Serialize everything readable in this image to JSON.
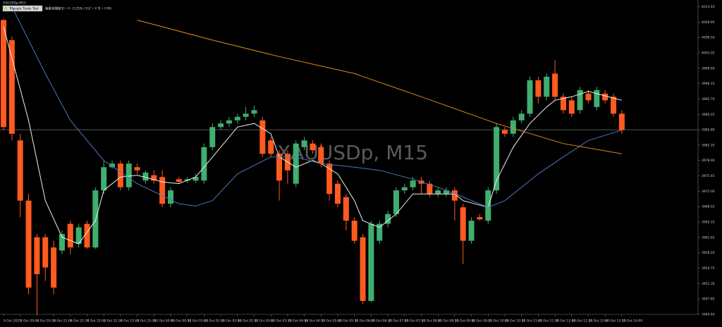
{
  "symbol_label": "XAUUSDp,M15",
  "tool_button": "Triangle Trade Tool",
  "status_text": "偏乗実閾値モード: 0.25% (スピードモード中)",
  "chart_data": {
    "type": "candlestick",
    "watermark": "XAUUSDp, M15",
    "up_color": "#3fae6f",
    "down_color": "#ff5a1f",
    "categories": [
      "9 Oct 2025",
      null,
      "9 Oct 20:00",
      null,
      "9 Oct 20:30",
      null,
      "9 Oct 21:00",
      null,
      "9 Oct 21:30",
      null,
      "9 Oct 22:00",
      null,
      "9 Oct 22:30",
      null,
      "9 Oct 23:00",
      null,
      "9 Oct 23:30",
      null,
      "10 Oct 00:00",
      null,
      "10 Oct 00:30",
      null,
      "10 Oct 01:00",
      null,
      "10 Oct 01:30",
      null,
      "10 Oct 02:00",
      null,
      "10 Oct 02:30",
      null,
      "10 Oct 03:00",
      null,
      "10 Oct 03:30",
      null,
      "10 Oct 04:00",
      null,
      "10 Oct 04:30",
      null,
      "10 Oct 05:00",
      null,
      "10 Oct 05:30",
      null,
      "10 Oct 06:00",
      null,
      "10 Oct 06:30",
      null,
      "10 Oct 07:00",
      null,
      "10 Oct 07:30",
      null,
      "10 Oct 08:00",
      null,
      "10 Oct 08:30",
      null,
      "10 Oct 09:00",
      null,
      "10 Oct 09:30",
      null,
      "10 Oct 10:00",
      null,
      "10 Oct 10:30",
      null,
      "10 Oct 11:00",
      null,
      "10 Oct 11:30",
      null,
      "10 Oct 12:00",
      null,
      "10 Oct 12:30",
      null,
      "10 Oct 13:00",
      null,
      "10 Oct 13:30",
      null,
      "10 Oct 14:00"
    ],
    "open": [
      4010.4,
      4005.9,
      3983.4,
      3969.9,
      3961.7,
      3961.7,
      3959.4,
      3958.7,
      3964.7,
      3960.2,
      3964.7,
      3959.4,
      3972.2,
      3977.4,
      3978.2,
      3972.9,
      3977.4,
      3974.4,
      3975.6,
      3975.2,
      3969.2,
      3974.7,
      3974.4,
      3974.4,
      3974.4,
      3981.9,
      3986.4,
      3987.2,
      3987.9,
      3988.7,
      3989.4,
      3987.9,
      3983.4,
      3980.4,
      3980.4,
      3973.7,
      3981.9,
      3982.7,
      3981.9,
      3978.2,
      3973.7,
      3970.7,
      3965.4,
      3961.7,
      3947.4,
      3960.9,
      3964.7,
      3966.9,
      3972.2,
      3972.9,
      3974.4,
      3973.7,
      3971.4,
      3971.4,
      3972.2,
      3968.4,
      3960.9,
      3966.2,
      3965.4,
      3972.2,
      3985.7,
      3984.9,
      3987.9,
      3989.4,
      3996.9,
      3993.2,
      3998.4,
      3993.2,
      3992.4,
      3990.2,
      3993.9,
      3990.9,
      3993.9,
      3993.2,
      3989.4
    ],
    "high": [
      4010.7,
      4006.7,
      3984.9,
      3971.4,
      3962.4,
      3962.4,
      3960.9,
      3963.2,
      3965.4,
      3964.7,
      3965.4,
      3972.9,
      3978.9,
      3978.9,
      3978.9,
      3978.9,
      3978.2,
      3976.7,
      3976.7,
      3976.7,
      3972.9,
      3975.2,
      3975.2,
      3975.9,
      3982.7,
      3987.2,
      3987.9,
      3988.7,
      3989.4,
      3990.9,
      3991.2,
      3988.7,
      3984.2,
      3981.2,
      3981.2,
      3983.4,
      3984.2,
      3983.4,
      3982.7,
      3978.9,
      3974.4,
      3971.4,
      3966.2,
      3962.4,
      3965.4,
      3965.4,
      3967.7,
      3972.9,
      3973.7,
      3975.2,
      3975.2,
      3974.4,
      3972.9,
      3972.9,
      3972.9,
      3969.2,
      3966.2,
      3966.9,
      3972.9,
      3987.2,
      3986.4,
      3988.7,
      3990.2,
      3997.7,
      3997.7,
      3998.4,
      4001.4,
      3993.9,
      3993.2,
      3995.4,
      3994.7,
      3995.4,
      3994.7,
      3993.9,
      3990.2
    ],
    "low": [
      3985.7,
      3983.4,
      3966.2,
      3948.9,
      3944.4,
      3951.9,
      3948.9,
      3957.9,
      3957.9,
      3959.4,
      3959.1,
      3959.1,
      3971.4,
      3977.1,
      3972.2,
      3972.2,
      3975.9,
      3973.7,
      3973.7,
      3968.4,
      3968.4,
      3973.7,
      3973.9,
      3973.9,
      3973.7,
      3981.2,
      3985.7,
      3986.4,
      3987.2,
      3987.9,
      3988.7,
      3979.7,
      3979.7,
      3969.9,
      3973.7,
      3972.9,
      3981.2,
      3980.4,
      3977.4,
      3969.9,
      3968.4,
      3963.2,
      3960.2,
      3946.7,
      3947.1,
      3960.2,
      3963.9,
      3966.2,
      3971.4,
      3972.2,
      3971.4,
      3970.7,
      3970.7,
      3970.7,
      3965.4,
      3955.7,
      3960.2,
      3965.4,
      3964.7,
      3971.4,
      3984.2,
      3984.2,
      3987.2,
      3988.7,
      3991.7,
      3992.4,
      3992.4,
      3989.4,
      3988.7,
      3989.4,
      3991.7,
      3990.2,
      3991.7,
      3988.7,
      3984.9
    ],
    "close": [
      3986.4,
      3984.9,
      3969.9,
      3950.4,
      3953.4,
      3954.9,
      3950.4,
      3962.4,
      3959.4,
      3963.9,
      3959.4,
      3972.2,
      3977.4,
      3978.2,
      3972.9,
      3978.2,
      3976.7,
      3976.2,
      3974.4,
      3969.2,
      3972.2,
      3974.1,
      3974.7,
      3975.2,
      3981.9,
      3986.4,
      3987.2,
      3987.9,
      3988.7,
      3989.4,
      3990.2,
      3980.4,
      3980.4,
      3974.4,
      3976.7,
      3982.7,
      3983.4,
      3981.2,
      3978.2,
      3971.4,
      3969.2,
      3965.4,
      3960.9,
      3947.4,
      3964.7,
      3964.7,
      3966.9,
      3972.2,
      3972.9,
      3974.4,
      3973.7,
      3971.4,
      3972.2,
      3972.2,
      3969.9,
      3960.9,
      3965.4,
      3965.7,
      3972.2,
      3986.4,
      3984.9,
      3987.9,
      3989.4,
      3996.9,
      3993.2,
      3997.7,
      3993.2,
      3990.2,
      3989.4,
      3994.7,
      3992.4,
      3994.7,
      3992.4,
      3989.4,
      3985.7
    ],
    "lines": [
      {
        "color": "#f0f0f0",
        "x": [
          0,
          3,
          5,
          7,
          9,
          11,
          12,
          14,
          16,
          19,
          21,
          23,
          26,
          28,
          30,
          32,
          33,
          35,
          37,
          38,
          40,
          42,
          43,
          45,
          47,
          49,
          51,
          54,
          55,
          58,
          59,
          61,
          63,
          65,
          66,
          68,
          70,
          71,
          74
        ],
        "values": [
          4008.9,
          3987.9,
          3969.9,
          3961.7,
          3960.2,
          3965.4,
          3972.2,
          3975.2,
          3975.6,
          3974.1,
          3973.7,
          3975.2,
          3981.9,
          3986.4,
          3987.2,
          3984.9,
          3979.7,
          3977.4,
          3978.9,
          3978.2,
          3975.9,
          3969.9,
          3965.4,
          3963.9,
          3966.9,
          3971.4,
          3971.4,
          3971.4,
          3969.9,
          3968.4,
          3974.4,
          3981.9,
          3987.2,
          3990.9,
          3992.4,
          3993.2,
          3994.4,
          3993.9,
          3992.4
        ]
      },
      {
        "color": "#4a78b8",
        "x": [
          1,
          5,
          8,
          12,
          16,
          21,
          23,
          25,
          28,
          32,
          35,
          38,
          42,
          45,
          49,
          52,
          55,
          58,
          60,
          64,
          67,
          70,
          74
        ],
        "values": [
          4013.4,
          3998.4,
          3987.9,
          3978.9,
          3973.7,
          3969.2,
          3968.7,
          3969.9,
          3975.9,
          3979.7,
          3979.7,
          3978.2,
          3977.4,
          3976.7,
          3974.7,
          3972.9,
          3970.7,
          3968.4,
          3969.9,
          3975.9,
          3979.7,
          3983.4,
          3985.7
        ]
      },
      {
        "color": "#e08a1e",
        "x": [
          16,
          25,
          33,
          42,
          50,
          59,
          67,
          74
        ],
        "values": [
          4010.4,
          4005.9,
          4002.2,
          3998.4,
          3993.2,
          3987.2,
          3982.7,
          3980.4
        ]
      }
    ],
    "last_price": 3985.8,
    "ylim": [
      3944.4,
      4014.9
    ],
    "yticks": [
      {
        "value": 4013.4,
        "label": "4013.40"
      },
      4009.95,
      {
        "value": 4006.5,
        "label": "4006.50"
      },
      4003.05,
      {
        "value": 3999.6,
        "label": "3999.60"
      },
      3996.15,
      {
        "value": 3992.7,
        "label": "3992.70"
      },
      3989.25,
      {
        "value": 3985.8,
        "label": "3985.80"
      },
      3982.35,
      {
        "value": 3978.9,
        "label": "3978.90"
      },
      3975.45,
      {
        "value": 3972,
        "label": "3972.00"
      },
      3968.55,
      {
        "value": 3965.1,
        "label": "3965.10"
      },
      3961.65,
      {
        "value": 3958.2,
        "label": "3958.20"
      },
      3954.75,
      {
        "value": 3951.3,
        "label": "3951.30"
      },
      3947.85,
      {
        "value": 3944.4,
        "label": "3944.40"
      }
    ]
  }
}
